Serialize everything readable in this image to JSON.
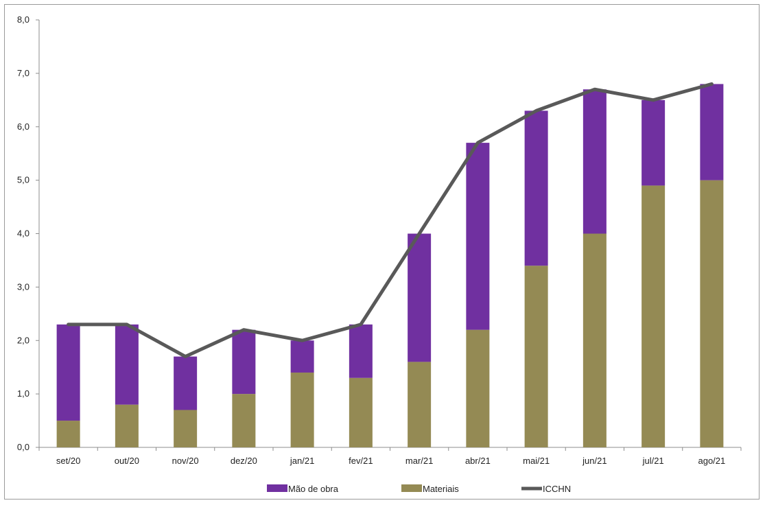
{
  "chart_data": {
    "type": "bar",
    "stacked": true,
    "categories": [
      "set/20",
      "out/20",
      "nov/20",
      "dez/20",
      "jan/21",
      "fev/21",
      "mar/21",
      "abr/21",
      "mai/21",
      "jun/21",
      "jul/21",
      "ago/21"
    ],
    "series": [
      {
        "name": "Materiais",
        "type": "bar",
        "color": "#948a54",
        "values": [
          0.5,
          0.8,
          0.7,
          1.0,
          1.4,
          1.3,
          1.6,
          2.2,
          3.4,
          4.0,
          4.9,
          5.0
        ]
      },
      {
        "name": "Mão de obra",
        "type": "bar",
        "color": "#7030a0",
        "values": [
          1.8,
          1.5,
          1.0,
          1.2,
          0.6,
          1.0,
          2.4,
          3.5,
          2.9,
          2.7,
          1.6,
          1.8
        ]
      },
      {
        "name": "ICCHN",
        "type": "line",
        "color": "#595959",
        "values": [
          2.3,
          2.3,
          1.7,
          2.2,
          2.0,
          2.3,
          4.0,
          5.7,
          6.3,
          6.7,
          6.5,
          6.8
        ]
      }
    ],
    "legend_order": [
      "Mão de obra",
      "Materiais",
      "ICCHN"
    ],
    "ylim": [
      0,
      8
    ],
    "yticks": [
      "0,0",
      "1,0",
      "2,0",
      "3,0",
      "4,0",
      "5,0",
      "6,0",
      "7,0",
      "8,0"
    ],
    "ytick_values": [
      0,
      1,
      2,
      3,
      4,
      5,
      6,
      7,
      8
    ],
    "grid": false,
    "legend_position": "bottom",
    "title": "",
    "xlabel": "",
    "ylabel": ""
  }
}
